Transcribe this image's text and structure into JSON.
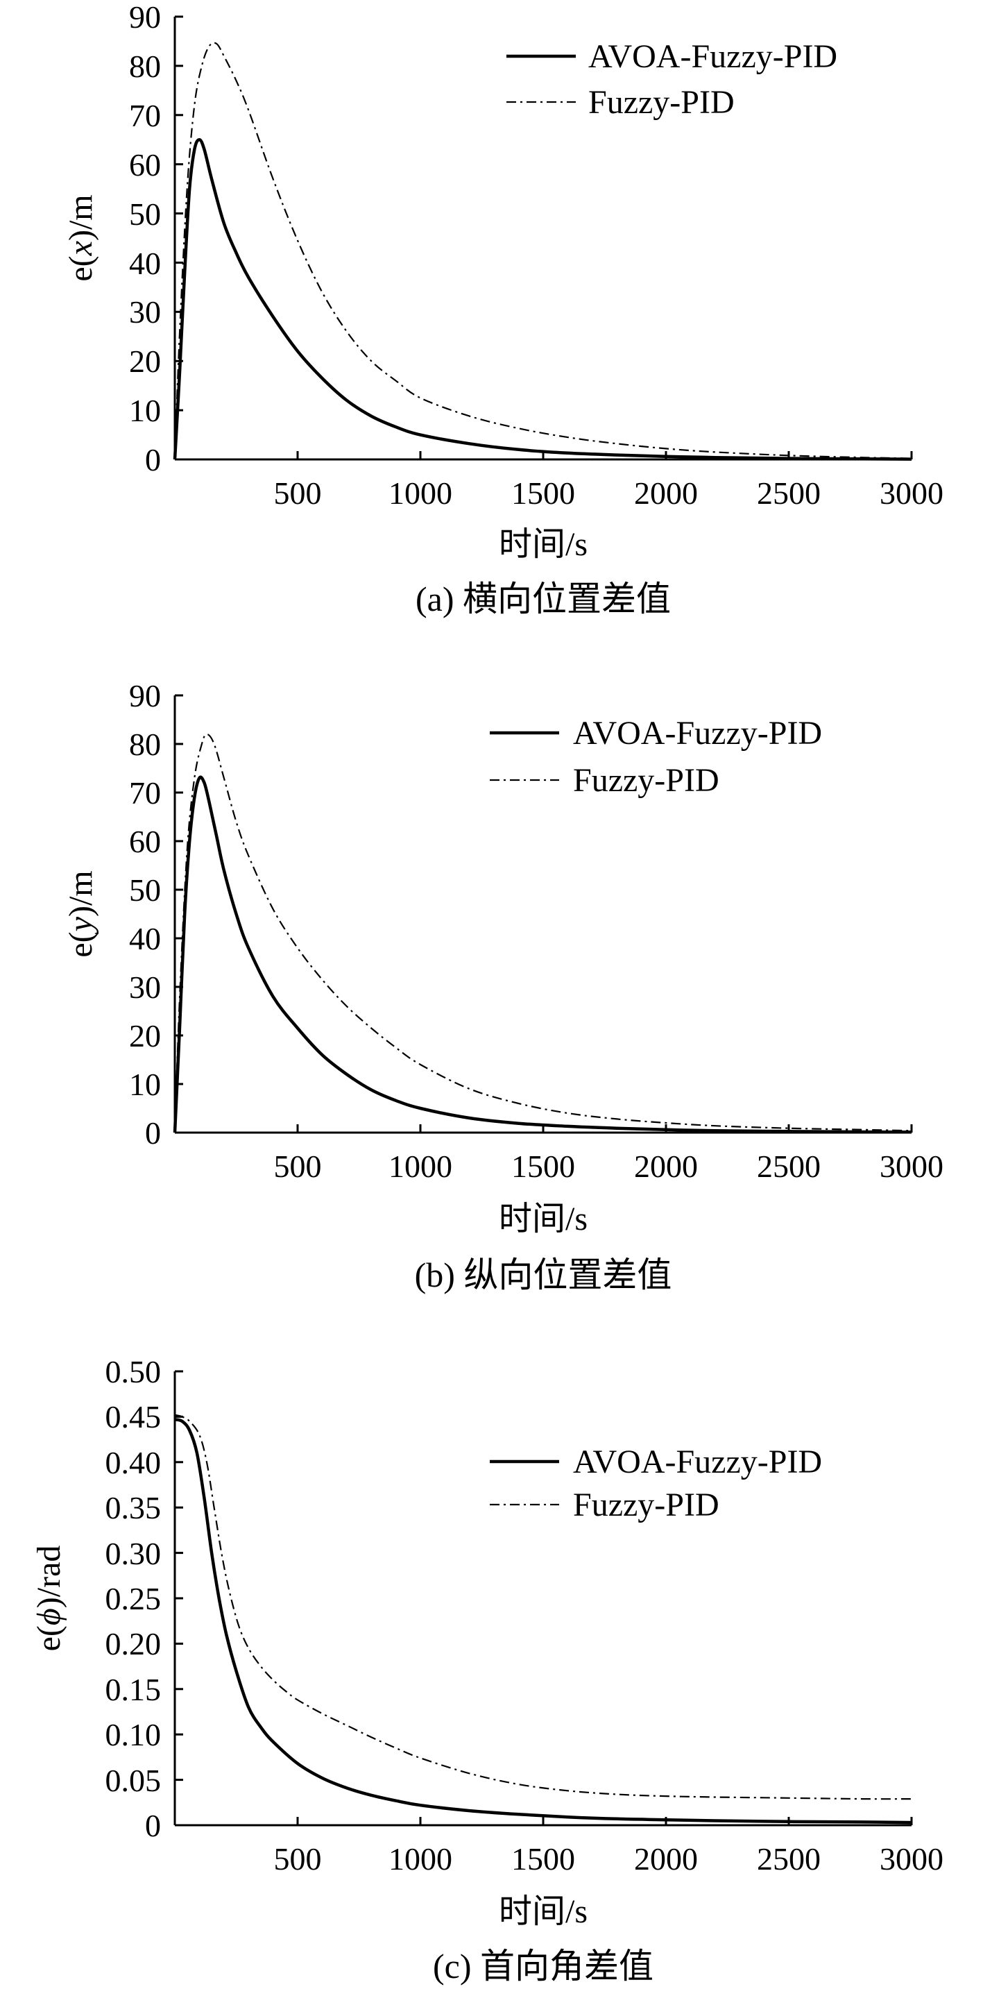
{
  "chart_data": [
    {
      "type": "line",
      "caption": "(a) 横向位置差值",
      "xlabel": "时间/s",
      "ylabel": {
        "prefix": "e(",
        "var": "x",
        "suffix": ")/m"
      },
      "xlim": [
        0,
        3000
      ],
      "ylim": [
        0,
        90
      ],
      "xticks": [
        500,
        1000,
        1500,
        2000,
        2500,
        3000
      ],
      "xtick_labels": [
        "500",
        "1000",
        "1500",
        "2000",
        "2500",
        "3000"
      ],
      "yticks": [
        0,
        10,
        20,
        30,
        40,
        50,
        60,
        70,
        80,
        90
      ],
      "ytick_labels": [
        "0",
        "10",
        "20",
        "30",
        "40",
        "50",
        "60",
        "70",
        "80",
        "90"
      ],
      "legend": [
        "AVOA-Fuzzy-PID",
        "Fuzzy-PID"
      ],
      "series": [
        {
          "name": "AVOA-Fuzzy-PID",
          "style": "solid",
          "x": [
            0,
            20,
            40,
            60,
            80,
            100,
            120,
            150,
            200,
            250,
            300,
            400,
            500,
            600,
            700,
            800,
            900,
            1000,
            1200,
            1400,
            1600,
            1800,
            2000,
            2200,
            2500,
            2800,
            3000
          ],
          "y": [
            0,
            18,
            38,
            55,
            63,
            65,
            63,
            57,
            48,
            42,
            37,
            29,
            22,
            16.5,
            12,
            8.8,
            6.6,
            5,
            3.2,
            2,
            1.3,
            0.9,
            0.6,
            0.4,
            0.2,
            0.1,
            0.05
          ]
        },
        {
          "name": "Fuzzy-PID",
          "style": "dashdot",
          "x": [
            0,
            20,
            50,
            80,
            110,
            140,
            170,
            200,
            250,
            300,
            400,
            500,
            600,
            700,
            800,
            900,
            1000,
            1200,
            1400,
            1600,
            1800,
            2000,
            2200,
            2500,
            2800,
            3000
          ],
          "y": [
            0,
            26,
            55,
            72,
            80,
            84,
            84.5,
            82,
            77,
            71,
            57,
            44.5,
            34,
            26,
            20,
            16,
            12.5,
            8.8,
            6.3,
            4.5,
            3.2,
            2.2,
            1.5,
            0.8,
            0.4,
            0.2
          ]
        }
      ]
    },
    {
      "type": "line",
      "caption": "(b) 纵向位置差值",
      "xlabel": "时间/s",
      "ylabel": {
        "prefix": "e(",
        "var": "y",
        "suffix": ")/m"
      },
      "xlim": [
        0,
        3000
      ],
      "ylim": [
        0,
        90
      ],
      "xticks": [
        500,
        1000,
        1500,
        2000,
        2500,
        3000
      ],
      "xtick_labels": [
        "500",
        "1000",
        "1500",
        "2000",
        "2500",
        "3000"
      ],
      "yticks": [
        0,
        10,
        20,
        30,
        40,
        50,
        60,
        70,
        80,
        90
      ],
      "ytick_labels": [
        "0",
        "10",
        "20",
        "30",
        "40",
        "50",
        "60",
        "70",
        "80",
        "90"
      ],
      "legend": [
        "AVOA-Fuzzy-PID",
        "Fuzzy-PID"
      ],
      "series": [
        {
          "name": "AVOA-Fuzzy-PID",
          "style": "solid",
          "x": [
            0,
            20,
            40,
            60,
            80,
            100,
            120,
            140,
            170,
            200,
            250,
            300,
            400,
            500,
            600,
            700,
            800,
            900,
            1000,
            1200,
            1400,
            1600,
            1800,
            2000,
            2200,
            2500,
            2800,
            3000
          ],
          "y": [
            0,
            22,
            45,
            60,
            69,
            73,
            72,
            68,
            61,
            54,
            45,
            38,
            28,
            21.5,
            16,
            12,
            8.8,
            6.6,
            5,
            3,
            1.9,
            1.3,
            0.9,
            0.6,
            0.4,
            0.25,
            0.15,
            0.1
          ]
        },
        {
          "name": "Fuzzy-PID",
          "style": "dashdot",
          "x": [
            0,
            20,
            50,
            80,
            110,
            130,
            160,
            200,
            250,
            300,
            400,
            500,
            600,
            700,
            800,
            900,
            1000,
            1200,
            1400,
            1600,
            1800,
            2000,
            2200,
            2500,
            2800,
            3000
          ],
          "y": [
            0,
            28,
            58,
            73,
            80,
            82,
            80,
            73,
            64,
            57,
            46,
            38,
            31.5,
            26,
            21.5,
            17.5,
            14,
            9,
            6,
            4,
            2.8,
            2,
            1.4,
            0.9,
            0.6,
            0.4
          ]
        }
      ]
    },
    {
      "type": "line",
      "caption": "(c) 首向角差值",
      "xlabel": "时间/s",
      "ylabel": {
        "prefix": "e(",
        "var": "ϕ",
        "suffix": ")/rad"
      },
      "xlim": [
        0,
        3000
      ],
      "ylim": [
        0,
        0.5
      ],
      "xticks": [
        500,
        1000,
        1500,
        2000,
        2500,
        3000
      ],
      "xtick_labels": [
        "500",
        "1000",
        "1500",
        "2000",
        "2500",
        "3000"
      ],
      "yticks": [
        0,
        0.05,
        0.1,
        0.15,
        0.2,
        0.25,
        0.3,
        0.35,
        0.4,
        0.45,
        0.5
      ],
      "ytick_labels": [
        "0",
        "0.05",
        "0.10",
        "0.15",
        "0.20",
        "0.25",
        "0.30",
        "0.35",
        "0.40",
        "0.45",
        "0.50"
      ],
      "legend": [
        "AVOA-Fuzzy-PID",
        "Fuzzy-PID"
      ],
      "series": [
        {
          "name": "AVOA-Fuzzy-PID",
          "style": "solid",
          "x": [
            0,
            30,
            60,
            90,
            120,
            150,
            180,
            210,
            250,
            300,
            350,
            400,
            500,
            600,
            700,
            800,
            900,
            1000,
            1200,
            1400,
            1600,
            1800,
            2000,
            2200,
            2500,
            2800,
            3000
          ],
          "y": [
            0.447,
            0.445,
            0.435,
            0.41,
            0.36,
            0.3,
            0.25,
            0.21,
            0.17,
            0.13,
            0.108,
            0.092,
            0.068,
            0.052,
            0.041,
            0.033,
            0.027,
            0.022,
            0.016,
            0.012,
            0.009,
            0.007,
            0.006,
            0.005,
            0.004,
            0.0035,
            0.003
          ]
        },
        {
          "name": "Fuzzy-PID",
          "style": "dashdot",
          "x": [
            0,
            30,
            60,
            100,
            130,
            160,
            190,
            220,
            260,
            300,
            350,
            400,
            450,
            500,
            600,
            700,
            800,
            900,
            1000,
            1200,
            1400,
            1600,
            1800,
            2000,
            2200,
            2500,
            2800,
            3000
          ],
          "y": [
            0.452,
            0.45,
            0.445,
            0.43,
            0.4,
            0.35,
            0.3,
            0.26,
            0.22,
            0.195,
            0.175,
            0.16,
            0.148,
            0.138,
            0.123,
            0.11,
            0.097,
            0.085,
            0.074,
            0.057,
            0.045,
            0.038,
            0.034,
            0.032,
            0.031,
            0.03,
            0.029,
            0.029
          ]
        }
      ]
    }
  ]
}
